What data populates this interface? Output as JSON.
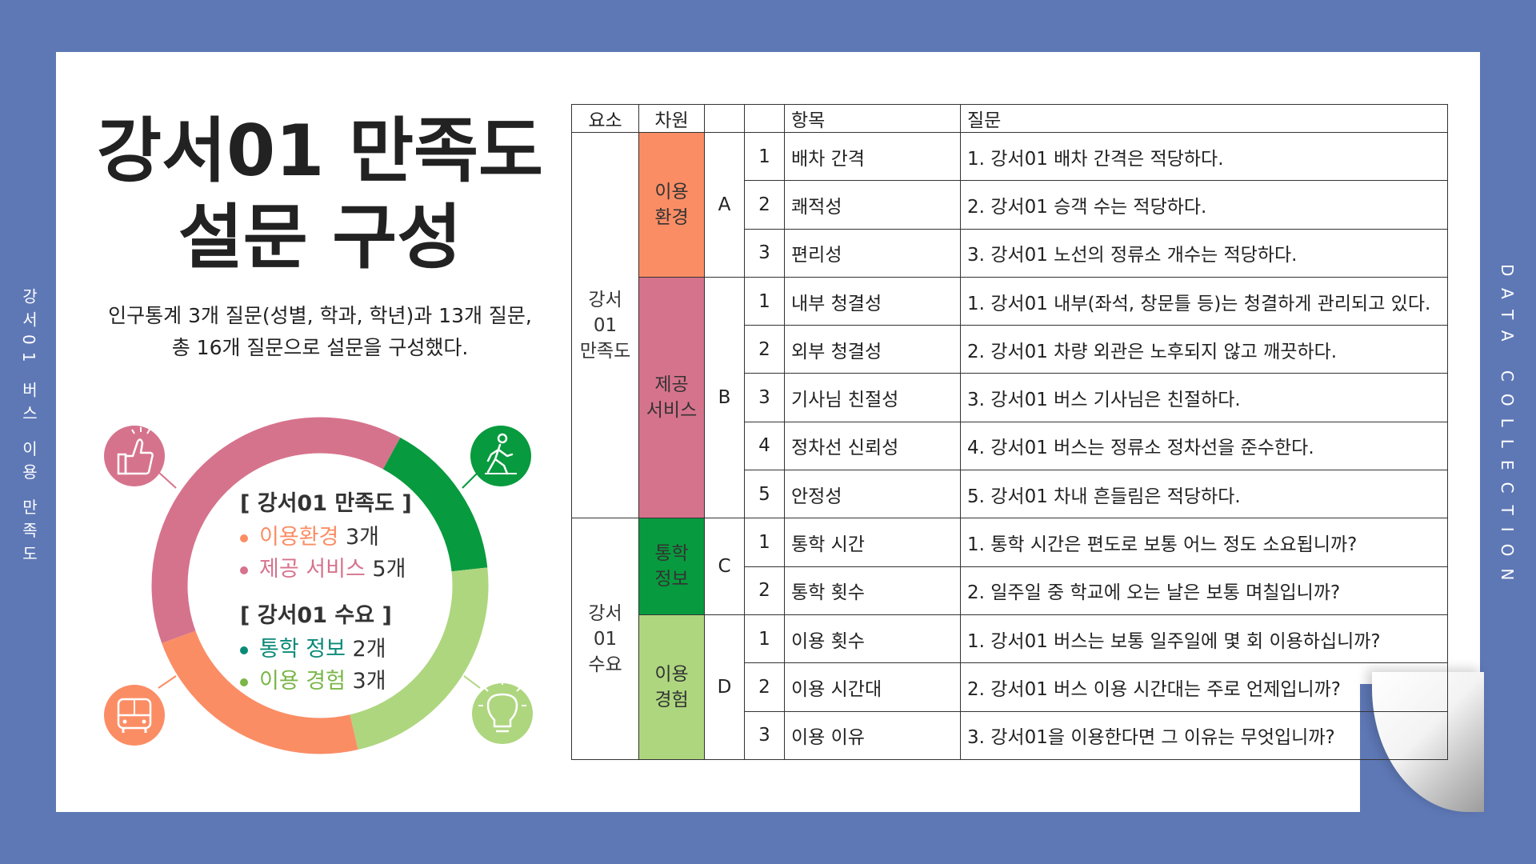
{
  "side_text_left": "강서01 버스 이용 만족도",
  "side_text_right": "DATA COLLECTION",
  "title_line1": "강서01 만족도",
  "title_line2": "설문 구성",
  "description_line1": "인구통계 3개 질문(성별, 학과, 학년)과 13개 질문,",
  "description_line2": "총 16개 질문으로  설문을 구성했다.",
  "colors": {
    "environment": "#fb8d65",
    "service": "#d6738c",
    "commute": "#089a3e",
    "usage": "#aed67f",
    "background": "#5e78b6"
  },
  "icons": [
    "thumbs-up-icon",
    "walking-person-icon",
    "bus-icon",
    "lightbulb-icon"
  ],
  "legend": {
    "satisfaction_header": "[ 강서01 만족도 ]",
    "satisfaction_items": [
      {
        "label": "이용환경",
        "count": "3개",
        "color": "#fb8d65"
      },
      {
        "label": "제공 서비스",
        "count": "5개",
        "color": "#d6738c"
      }
    ],
    "demand_header": "[ 강서01 수요 ]",
    "demand_items": [
      {
        "label": "통학 정보",
        "count": "2개",
        "color": "#0b8a78"
      },
      {
        "label": "이용 경험",
        "count": "3개",
        "color": "#7ab648"
      }
    ]
  },
  "donut": [
    {
      "name": "제공 서비스",
      "value": 5,
      "color": "#d6738c"
    },
    {
      "name": "통학 정보",
      "value": 2,
      "color": "#089a3e"
    },
    {
      "name": "이용 경험",
      "value": 3,
      "color": "#aed67f"
    },
    {
      "name": "이용환경",
      "value": 3,
      "color": "#fb8d65"
    }
  ],
  "table": {
    "headers": [
      "요소",
      "차원",
      "",
      "",
      "항목",
      "질문"
    ],
    "element_satisfaction": "강서01\n만족도",
    "element_demand": "강서01\n수요",
    "dim_env": "이용\n환경",
    "dim_service": "제공\n서비스",
    "dim_commute": "통학\n정보",
    "dim_usage": "이용\n경험",
    "codes": [
      "A",
      "B",
      "C",
      "D"
    ],
    "rows": [
      {
        "n": "1",
        "item": "배차 간격",
        "q": "1. 강서01 배차 간격은 적당하다."
      },
      {
        "n": "2",
        "item": "쾌적성",
        "q": "2. 강서01 승객 수는 적당하다."
      },
      {
        "n": "3",
        "item": "편리성",
        "q": "3. 강서01 노선의 정류소 개수는 적당하다."
      },
      {
        "n": "1",
        "item": "내부 청결성",
        "q": "1. 강서01 내부(좌석, 창문틀 등)는 청결하게 관리되고 있다."
      },
      {
        "n": "2",
        "item": "외부 청결성",
        "q": "2. 강서01 차량 외관은 노후되지 않고 깨끗하다."
      },
      {
        "n": "3",
        "item": "기사님 친절성",
        "q": "3. 강서01 버스 기사님은 친절하다."
      },
      {
        "n": "4",
        "item": "정차선 신뢰성",
        "q": "4. 강서01 버스는 정류소 정차선을 준수한다."
      },
      {
        "n": "5",
        "item": "안정성",
        "q": "5. 강서01 차내 흔들림은 적당하다."
      },
      {
        "n": "1",
        "item": "통학 시간",
        "q": "1. 통학 시간은 편도로 보통 어느 정도 소요됩니까?"
      },
      {
        "n": "2",
        "item": "통학 횟수",
        "q": "2. 일주일 중 학교에 오는 날은 보통 며칠입니까?"
      },
      {
        "n": "1",
        "item": "이용 횟수",
        "q": "1. 강서01 버스는 보통 일주일에 몇 회 이용하십니까?"
      },
      {
        "n": "2",
        "item": "이용 시간대",
        "q": "2. 강서01 버스 이용 시간대는 주로 언제입니까?"
      },
      {
        "n": "3",
        "item": "이용 이유",
        "q": "3. 강서01을 이용한다면 그 이유는 무엇입니까?"
      }
    ]
  }
}
